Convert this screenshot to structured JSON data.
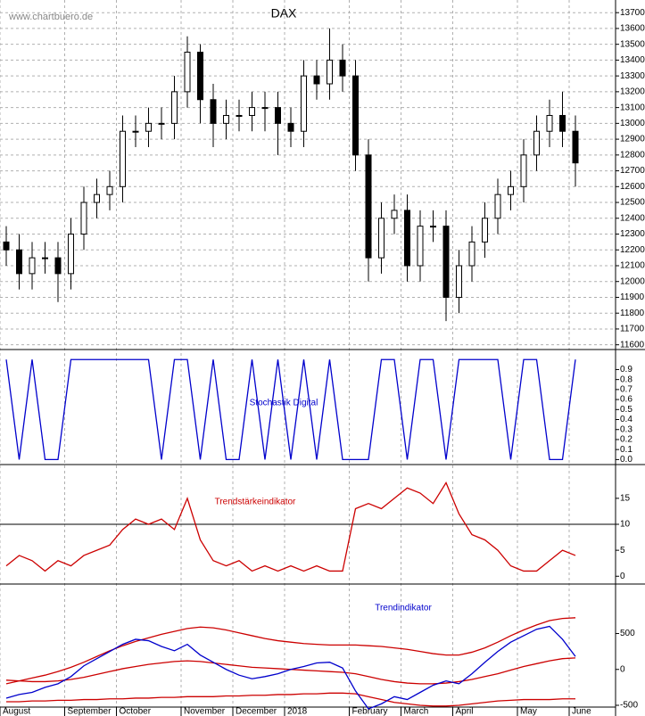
{
  "source": "www.chartbuero.de",
  "chart_data": [
    {
      "type": "candlestick",
      "title": "DAX",
      "open": [
        12250,
        12200,
        12050,
        12150,
        12150,
        12050,
        12300,
        12500,
        12550,
        12600,
        12950,
        12950,
        13000,
        13000,
        13200,
        13450,
        13150,
        13000,
        13050,
        13050,
        13100,
        13100,
        13000,
        12950,
        13300,
        13250,
        13400,
        13300,
        12800,
        12150,
        12400,
        12450,
        12100,
        12350,
        12350,
        11900,
        12100,
        12250,
        12400,
        12550,
        12600,
        12800,
        12950,
        13050,
        12950
      ],
      "high": [
        12350,
        12300,
        12250,
        12250,
        12250,
        12400,
        12600,
        12650,
        12700,
        13050,
        13050,
        13100,
        13100,
        13300,
        13550,
        13500,
        13250,
        13150,
        13150,
        13200,
        13200,
        13200,
        13100,
        13400,
        13400,
        13600,
        13500,
        13400,
        12900,
        12500,
        12550,
        12550,
        12450,
        12450,
        12450,
        12200,
        12350,
        12500,
        12650,
        12700,
        12900,
        13050,
        13150,
        13200,
        13050
      ],
      "low": [
        12100,
        11950,
        11950,
        12050,
        11870,
        11950,
        12200,
        12400,
        12450,
        12500,
        12850,
        12850,
        12900,
        12900,
        13100,
        13000,
        12850,
        12900,
        12950,
        12950,
        12950,
        12800,
        12850,
        12850,
        13150,
        13150,
        13200,
        12700,
        12000,
        12050,
        12300,
        12000,
        12000,
        12250,
        11750,
        11800,
        12000,
        12150,
        12300,
        12450,
        12500,
        12700,
        12850,
        12850,
        12600
      ],
      "close": [
        12200,
        12050,
        12150,
        12150,
        12050,
        12300,
        12500,
        12550,
        12600,
        12950,
        12950,
        13000,
        13000,
        13200,
        13450,
        13150,
        13000,
        13050,
        13050,
        13100,
        13100,
        13000,
        12950,
        13300,
        13250,
        13400,
        13300,
        12800,
        12150,
        12400,
        12450,
        12100,
        12350,
        12350,
        11900,
        12100,
        12250,
        12400,
        12550,
        12600,
        12800,
        12950,
        13050,
        12950,
        12750
      ],
      "ylim": [
        11570,
        13780
      ],
      "yticks": [
        11600,
        11700,
        11800,
        11900,
        12000,
        12100,
        12200,
        12300,
        12400,
        12500,
        12600,
        12700,
        12800,
        12900,
        13000,
        13100,
        13200,
        13300,
        13400,
        13500,
        13600,
        13700
      ],
      "grid": true
    },
    {
      "type": "line",
      "title": "Stochastik Digital",
      "series": [
        {
          "color": "#0000cc",
          "values": [
            1,
            0,
            1,
            0,
            0,
            1,
            1,
            1,
            1,
            1,
            1,
            1,
            0,
            1,
            1,
            0,
            1,
            0,
            0,
            1,
            0,
            1,
            0,
            1,
            0,
            1,
            0,
            0,
            0,
            1,
            1,
            0,
            1,
            1,
            0,
            1,
            1,
            1,
            1,
            0,
            1,
            1,
            0,
            0,
            1
          ]
        }
      ],
      "ylim": [
        -0.05,
        1.1
      ],
      "yticks": [
        {
          "value": 0,
          "label": "0.0"
        },
        0.1,
        0.2,
        0.3,
        0.4,
        0.5,
        0.6,
        0.7,
        0.8,
        0.9
      ],
      "title_color": "#0000cc"
    },
    {
      "type": "line",
      "title": "Trendstärkeindikator",
      "series": [
        {
          "color": "#cc0000",
          "values": [
            2,
            4,
            3,
            1,
            3,
            2,
            4,
            5,
            6,
            9,
            11,
            10,
            11,
            9,
            15,
            7,
            3,
            2,
            3,
            1,
            2,
            1,
            2,
            1,
            2,
            1,
            1,
            13,
            14,
            13,
            15,
            17,
            16,
            14,
            18,
            12,
            8,
            7,
            5,
            2,
            1,
            1,
            3,
            5,
            4
          ]
        }
      ],
      "ylim": [
        -1.5,
        21.5
      ],
      "yticks": [
        0,
        5,
        10,
        15
      ],
      "reference_line": 10,
      "title_color": "#cc0000"
    },
    {
      "type": "line",
      "title": "Trendindikator",
      "categories": [
        "August",
        null,
        null,
        null,
        null,
        "September",
        null,
        null,
        null,
        "October",
        null,
        null,
        null,
        null,
        "November",
        null,
        null,
        null,
        "December",
        null,
        null,
        null,
        "2018",
        null,
        null,
        null,
        null,
        "February",
        null,
        null,
        null,
        "March",
        null,
        null,
        null,
        "April",
        null,
        null,
        null,
        null,
        "May",
        null,
        null,
        null,
        "June"
      ],
      "series": [
        {
          "color": "#cc0000",
          "values": [
            -200,
            -160,
            -120,
            -80,
            -30,
            30,
            100,
            180,
            260,
            330,
            390,
            440,
            490,
            530,
            570,
            590,
            580,
            550,
            510,
            470,
            430,
            400,
            380,
            360,
            350,
            340,
            340,
            340,
            330,
            320,
            300,
            280,
            250,
            220,
            200,
            200,
            240,
            300,
            380,
            470,
            550,
            620,
            680,
            710,
            720
          ]
        },
        {
          "color": "#cc0000",
          "values": [
            -150,
            -160,
            -170,
            -170,
            -160,
            -140,
            -110,
            -70,
            -30,
            10,
            40,
            70,
            90,
            110,
            120,
            110,
            90,
            70,
            50,
            30,
            20,
            10,
            0,
            -10,
            -20,
            -30,
            -40,
            -60,
            -100,
            -140,
            -170,
            -190,
            -200,
            -200,
            -190,
            -170,
            -140,
            -100,
            -60,
            -10,
            40,
            80,
            120,
            150,
            160
          ]
        },
        {
          "color": "#cc0000",
          "values": [
            -450,
            -450,
            -440,
            -440,
            -430,
            -430,
            -420,
            -420,
            -410,
            -410,
            -400,
            -400,
            -390,
            -390,
            -380,
            -380,
            -380,
            -370,
            -370,
            -360,
            -360,
            -350,
            -350,
            -340,
            -340,
            -330,
            -330,
            -340,
            -380,
            -420,
            -460,
            -480,
            -500,
            -510,
            -510,
            -500,
            -480,
            -460,
            -440,
            -430,
            -420,
            -420,
            -420,
            -410,
            -410
          ]
        },
        {
          "color": "#0000cc",
          "values": [
            -400,
            -350,
            -320,
            -250,
            -200,
            -100,
            50,
            150,
            250,
            350,
            420,
            400,
            320,
            260,
            350,
            200,
            100,
            0,
            -80,
            -130,
            -100,
            -60,
            0,
            40,
            90,
            100,
            20,
            -300,
            -550,
            -480,
            -380,
            -420,
            -320,
            -220,
            -160,
            -200,
            -60,
            100,
            250,
            380,
            470,
            560,
            600,
            420,
            180
          ]
        }
      ],
      "ylim": [
        -525,
        1190
      ],
      "yticks": [
        -500,
        0,
        500
      ],
      "title_color": "#0000cc"
    }
  ]
}
